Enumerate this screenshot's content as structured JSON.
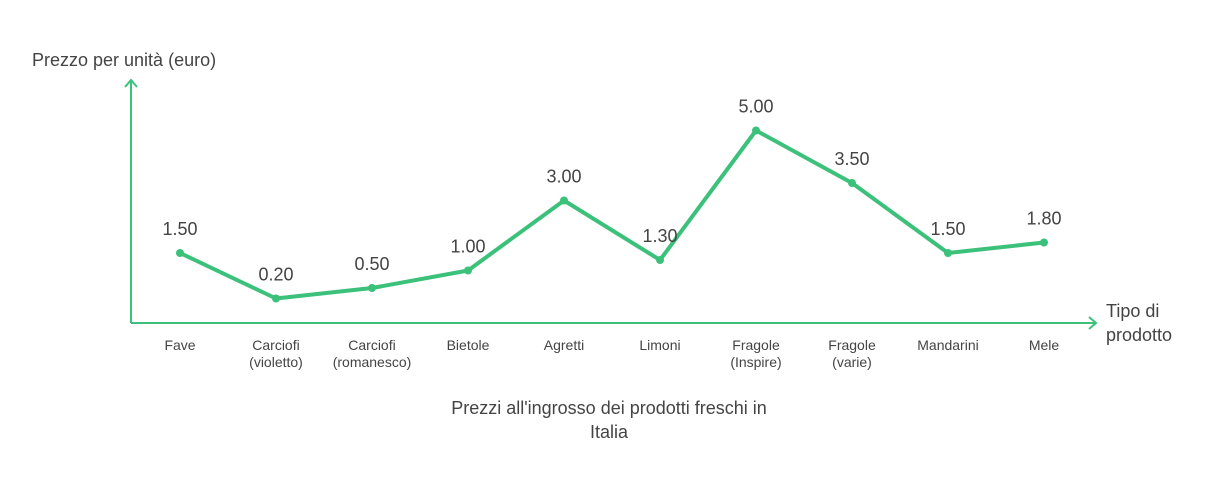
{
  "chart_data": {
    "type": "line",
    "title": "Prezzi all'ingrosso dei prodotti freschi in\nItalia",
    "y_label": "Prezzo per unità (euro)",
    "x_label": "Tipo di\nprodotto",
    "categories": [
      "Fave",
      "Carciofi\n(violetto)",
      "Carciofi\n(romanesco)",
      "Bietole",
      "Agretti",
      "Limoni",
      "Fragole\n(Inspire)",
      "Fragole\n(varie)",
      "Mandarini",
      "Mele"
    ],
    "series": [
      {
        "name": "Prezzo",
        "color": "#3cc17b",
        "values": [
          1.5,
          0.2,
          0.5,
          1.0,
          3.0,
          1.3,
          5.0,
          3.5,
          1.5,
          1.8
        ],
        "value_labels": [
          "1.50",
          "0.20",
          "0.50",
          "1.00",
          "3.00",
          "1.30",
          "5.00",
          "3.50",
          "1.50",
          "1.80"
        ]
      }
    ],
    "ylim": [
      -0.5,
      6.5
    ]
  }
}
